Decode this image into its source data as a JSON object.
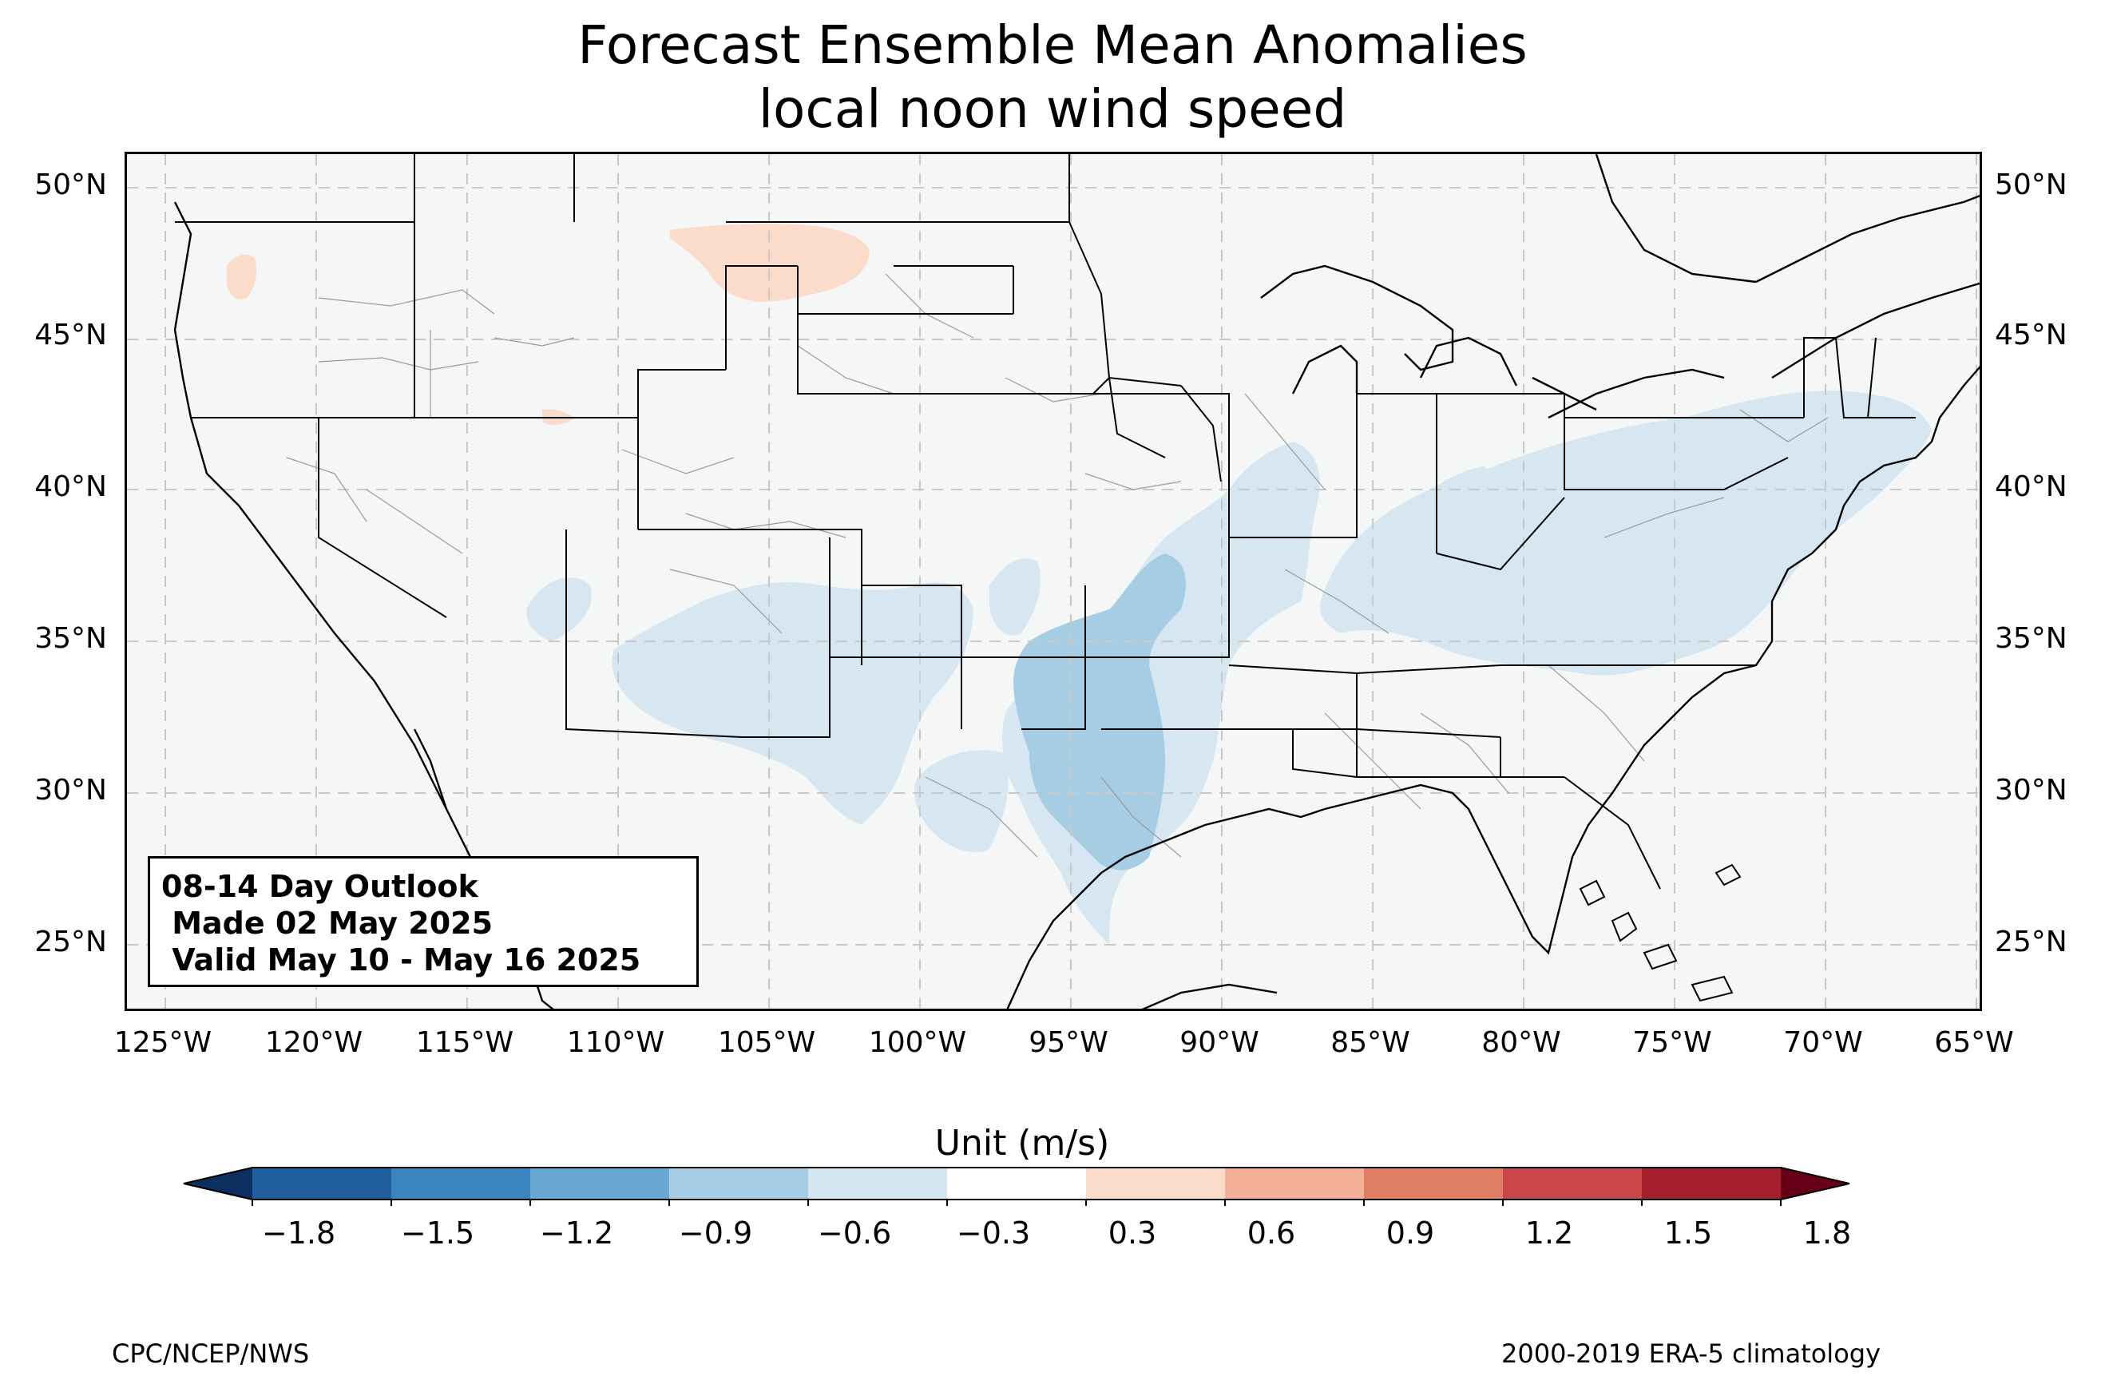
{
  "title": {
    "line1": "Forecast Ensemble Mean Anomalies",
    "line2": "local noon wind speed"
  },
  "map": {
    "lat_labels": [
      "50°N",
      "45°N",
      "40°N",
      "35°N",
      "30°N",
      "25°N"
    ],
    "lon_labels": [
      "125°W",
      "120°W",
      "115°W",
      "110°W",
      "105°W",
      "100°W",
      "95°W",
      "90°W",
      "85°W",
      "80°W",
      "75°W",
      "70°W",
      "65°W"
    ],
    "background_color": "#f5f7f7",
    "grid": "dashed"
  },
  "outlook": {
    "line1": "08-14 Day Outlook",
    "line2": " Made 02 May 2025",
    "line3": " Valid May 10 - May 16 2025"
  },
  "colorbar": {
    "label": "Unit (m/s)",
    "ticks": [
      "−1.8",
      "−1.5",
      "−1.2",
      "−0.9",
      "−0.6",
      "−0.3",
      "0.3",
      "0.6",
      "0.9",
      "1.2",
      "1.5",
      "1.8"
    ],
    "colors": [
      "#1f5fa0",
      "#3a85c0",
      "#68a8d2",
      "#a6cde3",
      "#d3e5f1",
      "#ffffff",
      "#fbdccb",
      "#f3b096",
      "#e07e64",
      "#c9464a",
      "#a51e2c"
    ],
    "under_color": "#0b2f5e",
    "over_color": "#660016"
  },
  "footer": {
    "left": "CPC/NCEP/NWS",
    "right": "2000-2019 ERA-5 climatology"
  }
}
